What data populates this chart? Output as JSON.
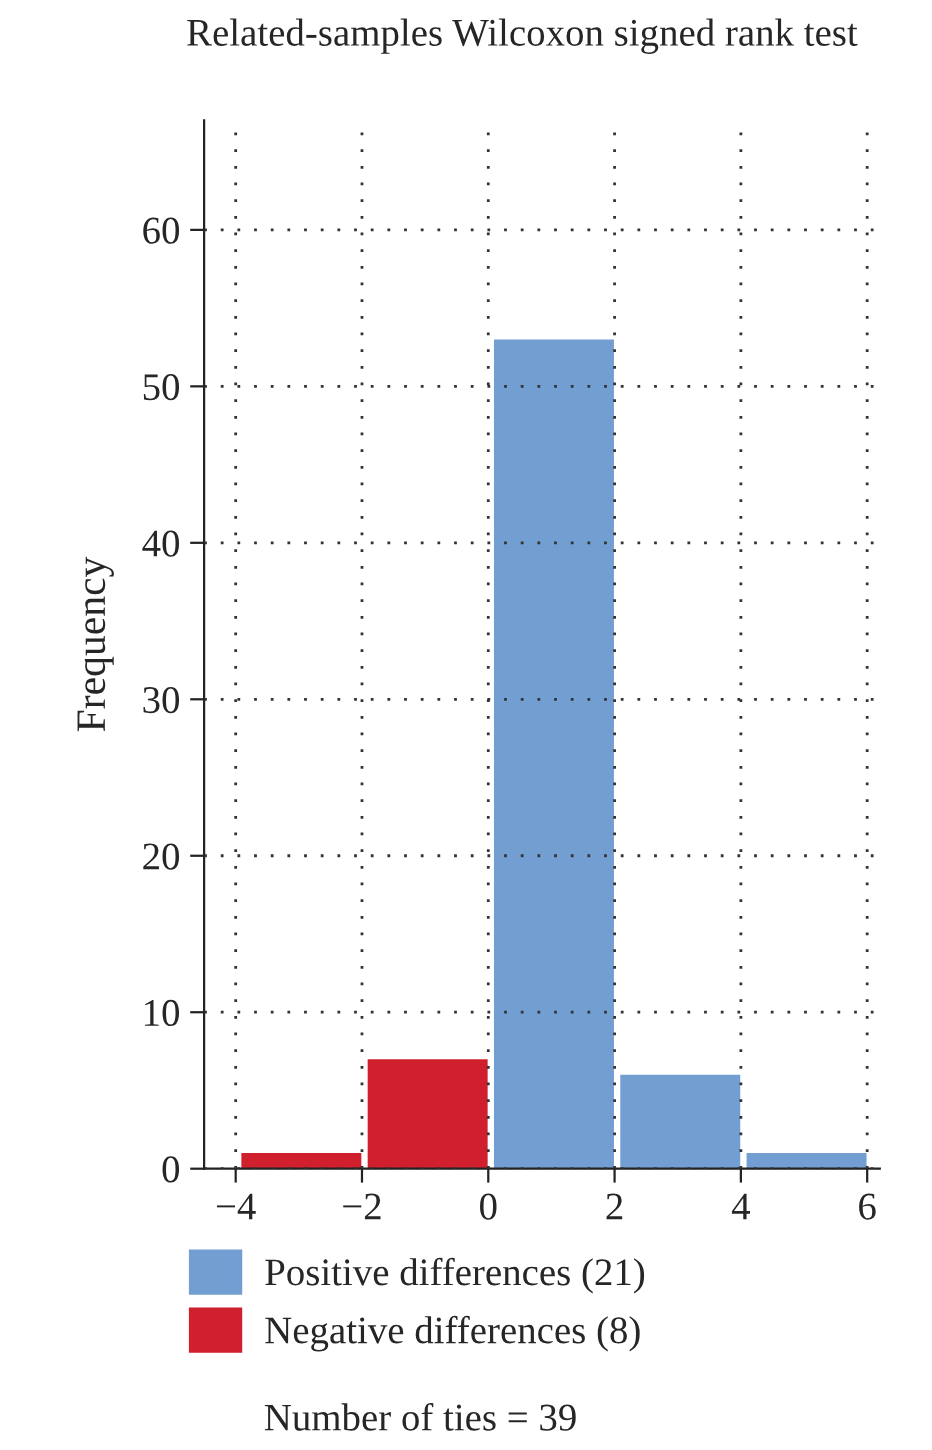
{
  "chart_data": {
    "type": "histogram",
    "title": "Related-samples Wilcoxon signed rank test",
    "ylabel": "Frequency",
    "bins": [
      -4,
      -2,
      0,
      2,
      4,
      6
    ],
    "series": [
      {
        "name": "Positive differences (21)",
        "color": "#729ed2",
        "values": [
          null,
          null,
          53,
          6,
          1
        ]
      },
      {
        "name": "Negative differences (8)",
        "color": "#d0202e",
        "values": [
          1,
          7,
          null,
          null,
          null
        ]
      }
    ],
    "xlim": [
      -4.5,
      6.2
    ],
    "ylim": [
      0,
      67
    ],
    "xticks": [
      {
        "value": -4,
        "label": "−4"
      },
      {
        "value": -2,
        "label": "−2"
      },
      0,
      2,
      4,
      6
    ],
    "yticks": [
      0,
      10,
      20,
      30,
      40,
      50,
      60
    ],
    "grid": true,
    "legend": "bottom",
    "annotations": [
      "Number of ties = 39"
    ]
  }
}
